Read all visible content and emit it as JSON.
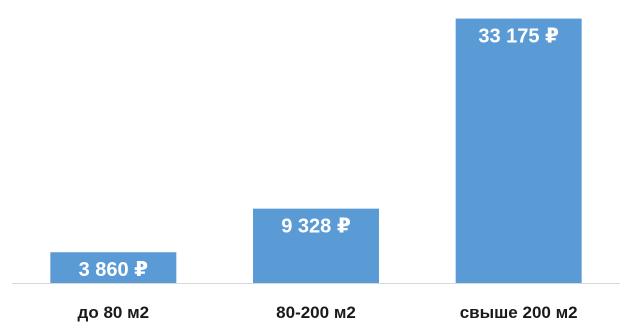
{
  "chart_data": {
    "type": "bar",
    "categories": [
      "до 80 м2",
      "80-200 м2",
      "свыше 200 м2"
    ],
    "values": [
      3860,
      9328,
      33175
    ],
    "data_labels": [
      "3 860 ₽",
      "9 328 ₽",
      "33 175 ₽"
    ],
    "title": "",
    "xlabel": "",
    "ylabel": "",
    "ylim": [
      0,
      34500
    ],
    "grid": false,
    "legend": "none",
    "data_label_position": "inside-top"
  },
  "colors": {
    "bar": "#5b9bd5",
    "axis": "#d9d9d9",
    "data_label": "#ffffff",
    "category_label": "#1a1a1a"
  }
}
